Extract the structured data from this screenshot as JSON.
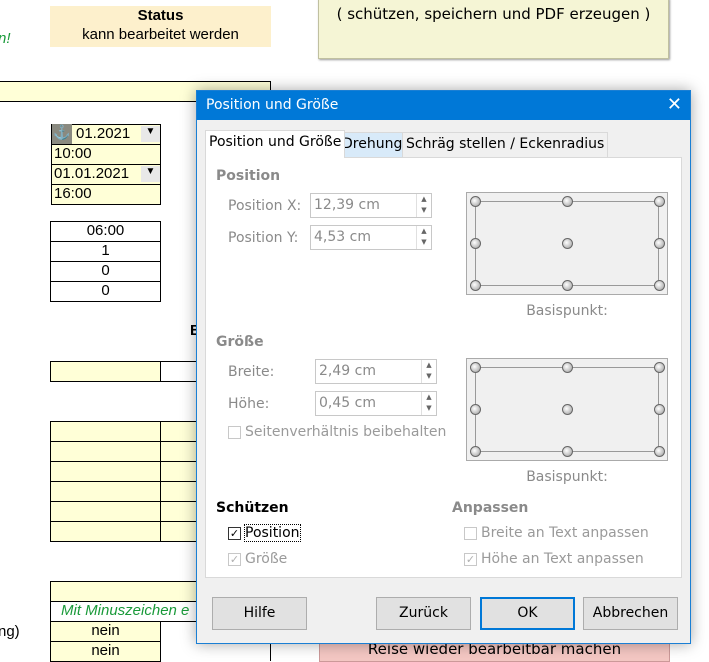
{
  "sheet": {
    "note_fragment": "n!",
    "status": {
      "title": "Status",
      "value": "kann bearbeitet werden"
    },
    "top_button_text": "( schützen, speichern und PDF erzeugen )",
    "date1": "01.2021",
    "time1": "10:00",
    "date2": "01.01.2021",
    "time2": "16:00",
    "values": [
      "06:00",
      "1",
      "0",
      "0"
    ],
    "heading_fragment": "B",
    "hint": "Mit Minuszeichen e",
    "row_label_fragment": "ng)",
    "answers": [
      "nein",
      "nein"
    ],
    "bottom_button": "Reise wieder bearbeitbar machen"
  },
  "dialog": {
    "title": "Position und Größe",
    "tabs": [
      "Position und Größe",
      "Drehung",
      "Schräg stellen / Eckenradius"
    ],
    "position": {
      "heading": "Position",
      "x_label": "Position X:",
      "x_value": "12,39 cm",
      "y_label": "Position Y:",
      "y_value": "4,53 cm",
      "base_point": "Basispunkt:"
    },
    "size": {
      "heading": "Größe",
      "width_label": "Breite:",
      "width_value": "2,49 cm",
      "height_label": "Höhe:",
      "height_value": "0,45 cm",
      "keep_ratio": "Seitenverhältnis beibehalten",
      "keep_ratio_checked": false,
      "base_point": "Basispunkt:"
    },
    "protect": {
      "heading": "Schützen",
      "position": "Position",
      "position_checked": true,
      "size": "Größe",
      "size_checked": true
    },
    "adapt": {
      "heading": "Anpassen",
      "fit_width": "Breite an Text anpassen",
      "fit_width_checked": false,
      "fit_height": "Höhe an Text anpassen",
      "fit_height_checked": true
    },
    "buttons": {
      "help": "Hilfe",
      "reset": "Zurück",
      "ok": "OK",
      "cancel": "Abbrechen"
    }
  }
}
